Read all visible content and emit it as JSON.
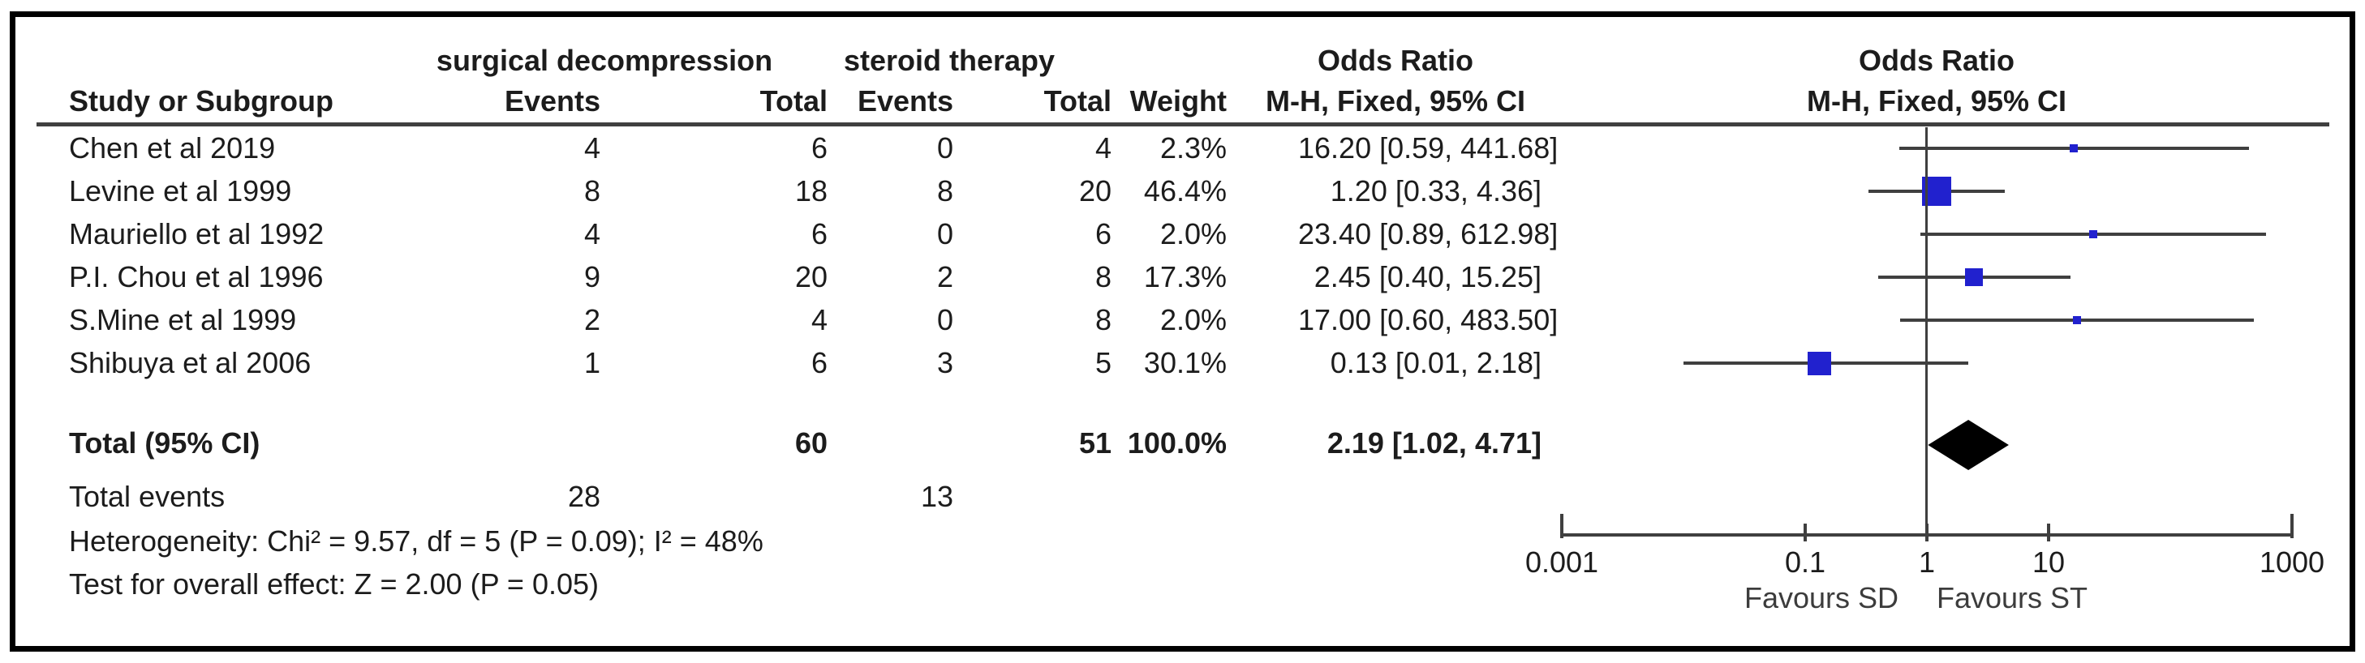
{
  "figure": {
    "background": "#ffffff",
    "border_color": "#000000"
  },
  "header": {
    "study_col": "Study or Subgroup",
    "group_sd": "surgical decompression",
    "group_st": "steroid therapy",
    "events_col": "Events",
    "total_col": "Total",
    "weight_col": "Weight",
    "or_col_title": "Odds Ratio",
    "or_col_subtitle": "M-H, Fixed, 95% CI",
    "plot_title": "Odds Ratio",
    "plot_subtitle": "M-H, Fixed, 95% CI"
  },
  "chart_data": {
    "type": "forest",
    "x_scale": "log10",
    "axis": {
      "min": 0.001,
      "max": 1000,
      "tick_values": [
        0.001,
        0.1,
        1,
        10,
        1000
      ],
      "tick_labels": [
        "0.001",
        "0.1",
        "1",
        "10",
        "1000"
      ],
      "favours_left": "Favours SD",
      "favours_right": "Favours ST"
    },
    "studies": [
      {
        "name": "Chen et al 2019",
        "sd_events": "4",
        "sd_total": "6",
        "st_events": "0",
        "st_total": "4",
        "weight": "2.3%",
        "weight_pct": 2.3,
        "or_text": "16.20 [0.59, 441.68]",
        "or": 16.2,
        "ci_low": 0.59,
        "ci_high": 441.68
      },
      {
        "name": "Levine et al 1999",
        "sd_events": "8",
        "sd_total": "18",
        "st_events": "8",
        "st_total": "20",
        "weight": "46.4%",
        "weight_pct": 46.4,
        "or_text": "1.20 [0.33, 4.36]",
        "or": 1.2,
        "ci_low": 0.33,
        "ci_high": 4.36
      },
      {
        "name": "Mauriello et al 1992",
        "sd_events": "4",
        "sd_total": "6",
        "st_events": "0",
        "st_total": "6",
        "weight": "2.0%",
        "weight_pct": 2.0,
        "or_text": "23.40 [0.89, 612.98]",
        "or": 23.4,
        "ci_low": 0.89,
        "ci_high": 612.98
      },
      {
        "name": "P.I. Chou et al 1996",
        "sd_events": "9",
        "sd_total": "20",
        "st_events": "2",
        "st_total": "8",
        "weight": "17.3%",
        "weight_pct": 17.3,
        "or_text": "2.45 [0.40, 15.25]",
        "or": 2.45,
        "ci_low": 0.4,
        "ci_high": 15.25
      },
      {
        "name": "S.Mine et al 1999",
        "sd_events": "2",
        "sd_total": "4",
        "st_events": "0",
        "st_total": "8",
        "weight": "2.0%",
        "weight_pct": 2.0,
        "or_text": "17.00 [0.60, 483.50]",
        "or": 17.0,
        "ci_low": 0.6,
        "ci_high": 483.5
      },
      {
        "name": "Shibuya et al 2006",
        "sd_events": "1",
        "sd_total": "6",
        "st_events": "3",
        "st_total": "5",
        "weight": "30.1%",
        "weight_pct": 30.1,
        "or_text": "0.13 [0.01, 2.18]",
        "or": 0.13,
        "ci_low": 0.01,
        "ci_high": 2.18
      }
    ],
    "total": {
      "label": "Total (95% CI)",
      "sd_total": "60",
      "st_total": "51",
      "weight": "100.0%",
      "or_text": "2.19 [1.02, 4.71]",
      "or": 2.19,
      "ci_low": 1.02,
      "ci_high": 4.71
    },
    "total_events": {
      "label": "Total events",
      "sd": "28",
      "st": "13"
    },
    "heterogeneity": "Heterogeneity: Chi² = 9.57, df = 5 (P = 0.09); I² = 48%",
    "overall_effect": "Test for overall effect: Z = 2.00 (P = 0.05)",
    "colors": {
      "square": "#2121ce",
      "diamond": "#000000",
      "line": "#3f3f3f",
      "text": "#1c1c1c"
    }
  }
}
